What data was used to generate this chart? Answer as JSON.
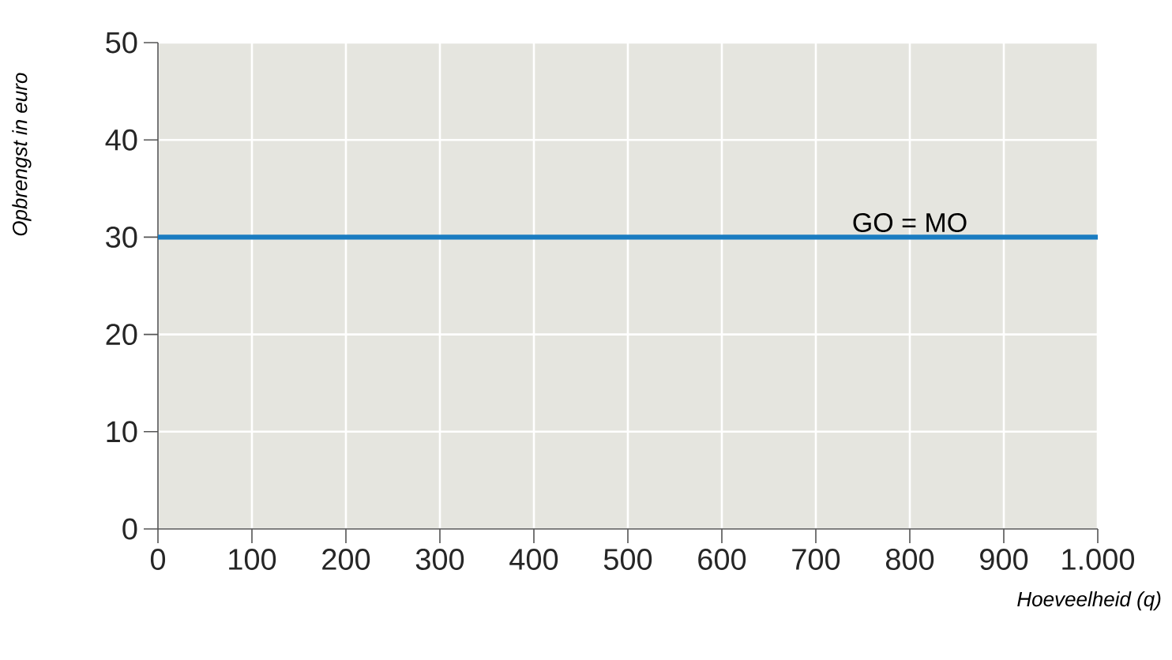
{
  "chart_data": {
    "type": "line",
    "xlabel": "Hoeveelheid (q)",
    "ylabel": "Opbrengst in euro",
    "xlim": [
      0,
      1000
    ],
    "ylim": [
      0,
      50
    ],
    "xticks": [
      0,
      100,
      200,
      300,
      400,
      500,
      600,
      700,
      800,
      900,
      {
        "value": 1000,
        "label": "1.000"
      }
    ],
    "yticks": [
      0,
      10,
      20,
      30,
      40,
      50
    ],
    "grid": true,
    "series": [
      {
        "color": "#1a7cc1",
        "x": [
          0,
          1000
        ],
        "values": [
          30,
          30
        ]
      }
    ],
    "annotations": [
      {
        "text": "GO = MO",
        "x": 800,
        "y": 30
      }
    ]
  }
}
